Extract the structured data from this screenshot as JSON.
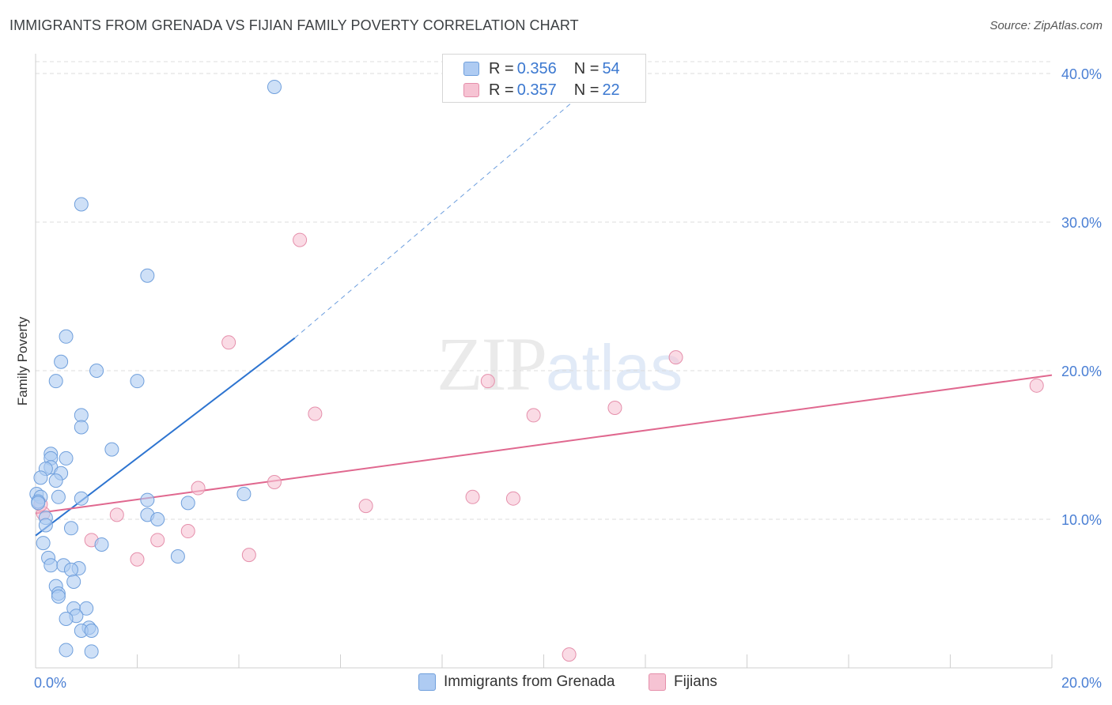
{
  "title": "IMMIGRANTS FROM GRENADA VS FIJIAN FAMILY POVERTY CORRELATION CHART",
  "source": "Source: ZipAtlas.com",
  "watermark": {
    "zip": "ZIP",
    "atlas": "atlas"
  },
  "legend": {
    "series1": {
      "r_label": "R = ",
      "r": "0.356",
      "n_label": "N = ",
      "n": "54"
    },
    "series2": {
      "r_label": "R = ",
      "r": "0.357",
      "n_label": "N = ",
      "n": "22"
    }
  },
  "bottom_legend": {
    "series1": "Immigrants from Grenada",
    "series2": "Fijians"
  },
  "colors": {
    "blue_fill": "#aecbf2",
    "blue_stroke": "#6f9fdc",
    "blue_line": "#2d74d0",
    "pink_fill": "#f6c3d3",
    "pink_stroke": "#e58fab",
    "pink_line": "#e0688f",
    "grid": "#dcdcdc"
  },
  "chart_data": {
    "type": "scatter",
    "title": "IMMIGRANTS FROM GRENADA VS FIJIAN FAMILY POVERTY CORRELATION CHART",
    "xlabel": "",
    "ylabel": "Family Poverty",
    "xlim": [
      0,
      20
    ],
    "ylim": [
      0,
      40.8
    ],
    "x_tick_labels": [
      "0.0%",
      "20.0%"
    ],
    "y_ticks": [
      10,
      20,
      30,
      40
    ],
    "y_tick_labels": [
      "10.0%",
      "20.0%",
      "30.0%",
      "40.0%"
    ],
    "series": [
      {
        "name": "Immigrants from Grenada",
        "color": "#aecbf2",
        "points": [
          [
            4.7,
            39.1
          ],
          [
            0.9,
            31.2
          ],
          [
            2.2,
            26.4
          ],
          [
            0.6,
            22.3
          ],
          [
            0.5,
            20.6
          ],
          [
            1.2,
            20.0
          ],
          [
            0.4,
            19.3
          ],
          [
            2.0,
            19.3
          ],
          [
            0.9,
            17.0
          ],
          [
            0.9,
            16.2
          ],
          [
            1.5,
            14.7
          ],
          [
            0.3,
            14.4
          ],
          [
            0.3,
            14.1
          ],
          [
            0.6,
            14.1
          ],
          [
            0.3,
            13.5
          ],
          [
            0.2,
            13.4
          ],
          [
            0.5,
            13.1
          ],
          [
            0.1,
            12.8
          ],
          [
            0.4,
            12.6
          ],
          [
            4.1,
            11.7
          ],
          [
            0.02,
            11.7
          ],
          [
            0.1,
            11.5
          ],
          [
            0.45,
            11.5
          ],
          [
            0.9,
            11.4
          ],
          [
            2.2,
            11.3
          ],
          [
            0.05,
            11.2
          ],
          [
            3.0,
            11.1
          ],
          [
            2.2,
            10.3
          ],
          [
            2.4,
            10.0
          ],
          [
            0.2,
            10.1
          ],
          [
            0.2,
            9.6
          ],
          [
            0.7,
            9.4
          ],
          [
            0.15,
            8.4
          ],
          [
            1.3,
            8.3
          ],
          [
            2.8,
            7.5
          ],
          [
            0.25,
            7.4
          ],
          [
            0.3,
            6.9
          ],
          [
            0.55,
            6.9
          ],
          [
            0.85,
            6.7
          ],
          [
            0.7,
            6.6
          ],
          [
            0.75,
            5.8
          ],
          [
            0.4,
            5.5
          ],
          [
            0.45,
            5.0
          ],
          [
            0.45,
            4.8
          ],
          [
            0.75,
            4.0
          ],
          [
            1.0,
            4.0
          ],
          [
            0.8,
            3.5
          ],
          [
            0.6,
            3.3
          ],
          [
            1.05,
            2.7
          ],
          [
            0.9,
            2.5
          ],
          [
            1.1,
            2.5
          ],
          [
            0.6,
            1.2
          ],
          [
            1.1,
            1.1
          ],
          [
            0.05,
            11.1
          ]
        ],
        "trend": {
          "x": [
            0,
            5.1
          ],
          "y": [
            8.9,
            22.2
          ],
          "dashed_to": [
            11.5,
            40.8
          ]
        }
      },
      {
        "name": "Fijians",
        "color": "#f6c3d3",
        "points": [
          [
            5.2,
            28.8
          ],
          [
            3.8,
            21.9
          ],
          [
            12.6,
            20.9
          ],
          [
            8.9,
            19.3
          ],
          [
            19.7,
            19.0
          ],
          [
            11.4,
            17.5
          ],
          [
            5.5,
            17.1
          ],
          [
            9.8,
            17.0
          ],
          [
            4.7,
            12.5
          ],
          [
            3.2,
            12.1
          ],
          [
            8.6,
            11.5
          ],
          [
            9.4,
            11.4
          ],
          [
            6.5,
            10.9
          ],
          [
            1.6,
            10.3
          ],
          [
            0.15,
            10.4
          ],
          [
            3.0,
            9.2
          ],
          [
            1.1,
            8.6
          ],
          [
            2.4,
            8.6
          ],
          [
            4.2,
            7.6
          ],
          [
            2.0,
            7.3
          ],
          [
            10.5,
            0.9
          ],
          [
            0.1,
            11.0
          ]
        ],
        "trend": {
          "x": [
            0,
            20
          ],
          "y": [
            10.4,
            19.7
          ]
        }
      }
    ]
  }
}
